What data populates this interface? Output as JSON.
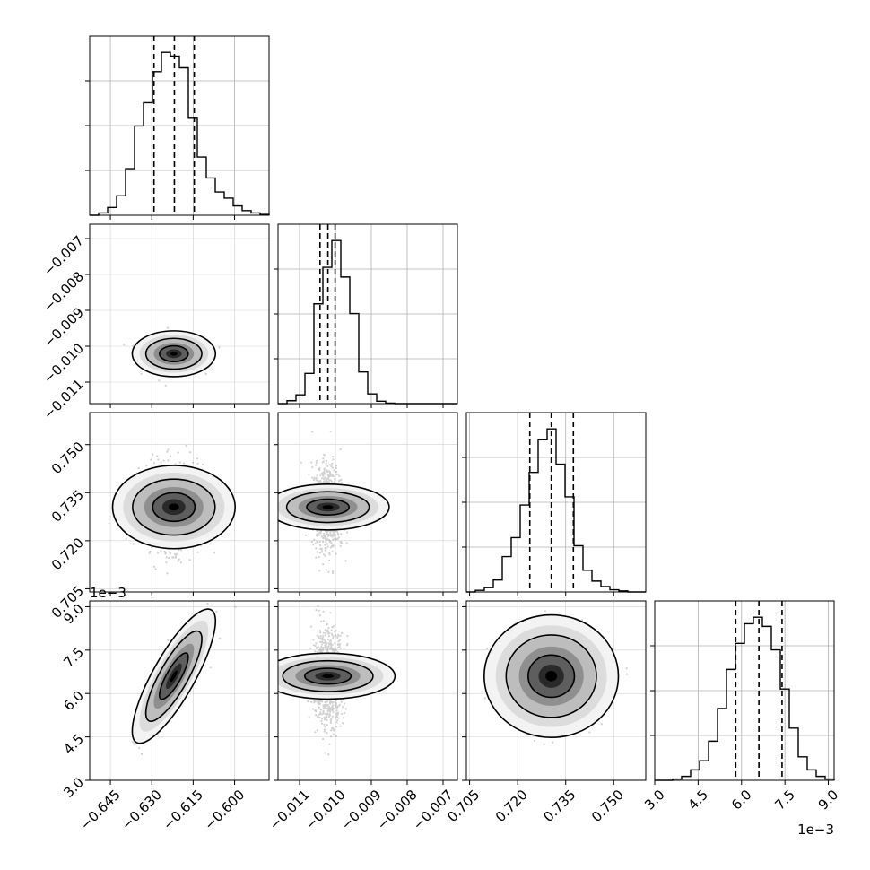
{
  "chart_data": {
    "type": "corner",
    "parameters": [
      {
        "range": [
          -0.6525,
          -0.5875
        ],
        "ticks": [
          -0.645,
          -0.63,
          -0.615,
          -0.6
        ],
        "tick_labels": [
          "−0.645",
          "−0.630",
          "−0.615",
          "−0.600"
        ],
        "quantiles": [
          -0.6292,
          -0.6218,
          -0.6146
        ],
        "mean": -0.622,
        "sd": 0.0052
      },
      {
        "range": [
          -0.0116,
          -0.0066
        ],
        "ticks": [
          -0.011,
          -0.01,
          -0.009,
          -0.008,
          -0.007
        ],
        "tick_labels": [
          "−0.011",
          "−0.010",
          "−0.009",
          "−0.008",
          "−0.007"
        ],
        "quantiles": [
          -0.01043,
          -0.01021,
          -0.01001
        ],
        "mean": -0.01021,
        "sd": 0.00022
      },
      {
        "range": [
          0.704,
          0.76
        ],
        "ticks": [
          0.705,
          0.72,
          0.735,
          0.75
        ],
        "tick_labels": [
          "0.705",
          "0.720",
          "0.735",
          "0.750"
        ],
        "quantiles": [
          0.7238,
          0.7305,
          0.7374
        ],
        "mean": 0.7305,
        "sd": 0.0066
      },
      {
        "range": [
          3.0,
          9.2
        ],
        "ticks": [
          3.0,
          4.5,
          6.0,
          7.5,
          9.0
        ],
        "tick_labels": [
          "3.0",
          "4.5",
          "6.0",
          "7.5",
          "9.0"
        ],
        "quantiles": [
          5.8,
          6.6,
          7.4
        ],
        "mean": 6.6,
        "sd": 0.8,
        "offset_label": "1e−3"
      }
    ],
    "correlations": [
      [
        0,
        1,
        0.0
      ],
      [
        0,
        2,
        0.0
      ],
      [
        0,
        3,
        0.82
      ],
      [
        1,
        2,
        0.0
      ],
      [
        1,
        3,
        0.0
      ],
      [
        2,
        3,
        0.0
      ]
    ],
    "histograms": [
      {
        "param": 0,
        "counts": [
          0,
          3,
          10,
          25,
          60,
          115,
          145,
          185,
          210,
          205,
          190,
          125,
          75,
          48,
          30,
          22,
          12,
          6,
          3,
          1
        ]
      },
      {
        "param": 1,
        "counts": [
          0,
          6,
          18,
          62,
          205,
          280,
          335,
          260,
          185,
          65,
          20,
          5,
          1,
          0,
          0,
          0,
          0,
          0,
          0,
          0
        ]
      },
      {
        "param": 2,
        "counts": [
          0,
          3,
          8,
          22,
          65,
          100,
          160,
          220,
          280,
          300,
          235,
          175,
          85,
          40,
          20,
          10,
          4,
          2,
          0,
          0
        ]
      },
      {
        "param": 3,
        "counts": [
          0,
          0,
          1,
          3,
          8,
          15,
          30,
          55,
          85,
          105,
          120,
          125,
          118,
          100,
          70,
          40,
          18,
          8,
          3,
          1
        ]
      }
    ],
    "grid": true,
    "contour_levels": [
      0.393,
      0.865,
      0.989
    ]
  }
}
